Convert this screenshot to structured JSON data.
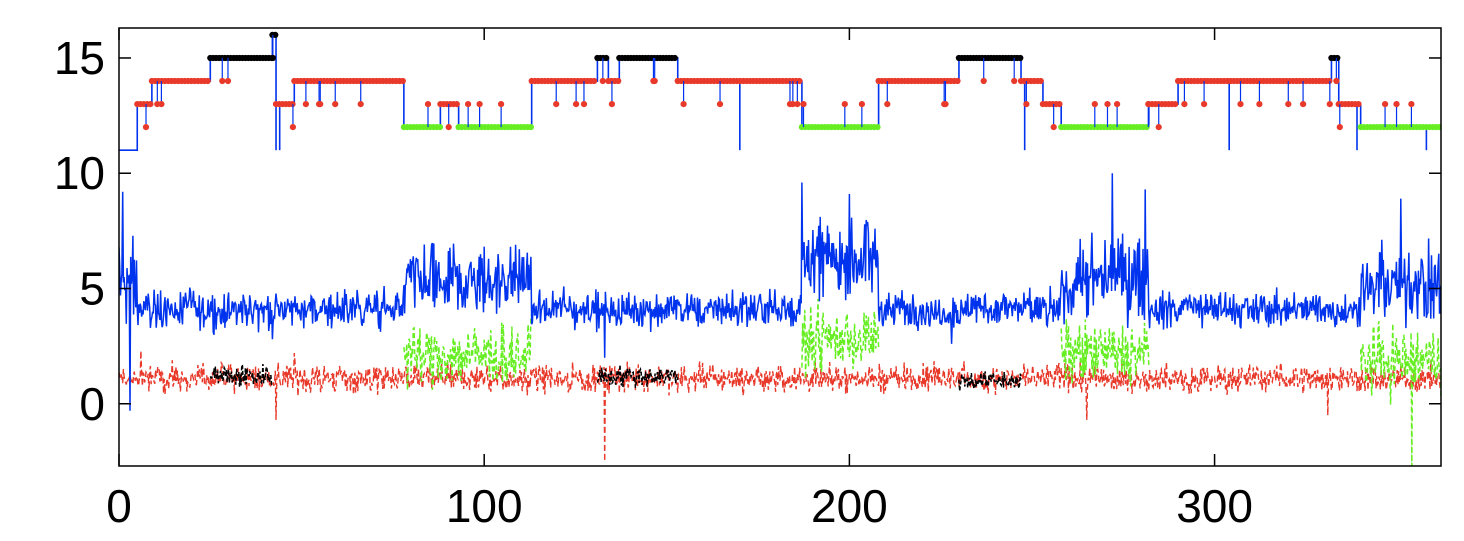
{
  "chart_data": {
    "type": "line",
    "title": "",
    "xlabel": "",
    "ylabel": "",
    "xlim": [
      0,
      362
    ],
    "ylim": [
      -2.7,
      16.3
    ],
    "x_ticks": [
      0,
      100,
      200,
      300
    ],
    "y_ticks": [
      0,
      5,
      10,
      15
    ],
    "x_tick_labels": [
      "0",
      "100",
      "200",
      "300"
    ],
    "y_tick_labels": [
      "0",
      "5",
      "10",
      "15"
    ],
    "grid": false,
    "legend": "none",
    "colors": {
      "blue": "#0033ee",
      "red": "#e8392a",
      "green": "#66ee22",
      "black": "#000000",
      "axis": "#000000",
      "background": "#ffffff"
    },
    "state_segments": [
      {
        "x0": 0,
        "x1": 5,
        "y": 11,
        "color": "blue"
      },
      {
        "x0": 5,
        "x1": 9,
        "y": 13,
        "color": "red"
      },
      {
        "x0": 9,
        "x1": 25,
        "y": 14,
        "color": "red"
      },
      {
        "x0": 25,
        "x1": 42,
        "y": 15,
        "color": "black"
      },
      {
        "x0": 42,
        "x1": 43,
        "y": 16,
        "color": "black"
      },
      {
        "x0": 43,
        "x1": 48,
        "y": 13,
        "color": "red"
      },
      {
        "x0": 48,
        "x1": 78,
        "y": 14,
        "color": "red"
      },
      {
        "x0": 78,
        "x1": 88,
        "y": 12,
        "color": "green"
      },
      {
        "x0": 88,
        "x1": 93,
        "y": 13,
        "color": "red"
      },
      {
        "x0": 93,
        "x1": 113,
        "y": 12,
        "color": "green"
      },
      {
        "x0": 113,
        "x1": 131,
        "y": 14,
        "color": "red"
      },
      {
        "x0": 131,
        "x1": 134,
        "y": 15,
        "color": "black"
      },
      {
        "x0": 134,
        "x1": 137,
        "y": 14,
        "color": "red"
      },
      {
        "x0": 137,
        "x1": 153,
        "y": 15,
        "color": "black"
      },
      {
        "x0": 153,
        "x1": 187,
        "y": 14,
        "color": "red"
      },
      {
        "x0": 187,
        "x1": 208,
        "y": 12,
        "color": "green"
      },
      {
        "x0": 208,
        "x1": 230,
        "y": 14,
        "color": "red"
      },
      {
        "x0": 230,
        "x1": 247,
        "y": 15,
        "color": "black"
      },
      {
        "x0": 247,
        "x1": 253,
        "y": 14,
        "color": "red"
      },
      {
        "x0": 253,
        "x1": 258,
        "y": 13,
        "color": "red"
      },
      {
        "x0": 258,
        "x1": 282,
        "y": 12,
        "color": "green"
      },
      {
        "x0": 282,
        "x1": 290,
        "y": 13,
        "color": "red"
      },
      {
        "x0": 290,
        "x1": 332,
        "y": 14,
        "color": "red"
      },
      {
        "x0": 332,
        "x1": 334,
        "y": 15,
        "color": "black"
      },
      {
        "x0": 334,
        "x1": 340,
        "y": 13,
        "color": "red"
      },
      {
        "x0": 340,
        "x1": 362,
        "y": 12,
        "color": "green"
      }
    ],
    "state_dips": [
      {
        "x": 43,
        "y": 11
      },
      {
        "x": 44,
        "y": 11
      },
      {
        "x": 170,
        "y": 11
      },
      {
        "x": 248,
        "y": 11
      },
      {
        "x": 304,
        "y": 11
      },
      {
        "x": 339,
        "y": 11
      },
      {
        "x": 358,
        "y": 11
      }
    ],
    "series": [
      {
        "color": "blue",
        "baseline": 4.1,
        "spread": 0.9,
        "excursions": [
          {
            "x0": 0,
            "x1": 5,
            "level": 5.2,
            "spread": 2.0
          },
          {
            "x0": 78,
            "x1": 113,
            "level": 5.3,
            "spread": 1.6
          },
          {
            "x0": 187,
            "x1": 208,
            "level": 6.2,
            "spread": 1.7
          },
          {
            "x0": 258,
            "x1": 282,
            "level": 5.4,
            "spread": 1.9
          },
          {
            "x0": 340,
            "x1": 362,
            "level": 5.1,
            "spread": 1.7
          }
        ],
        "spikes": [
          {
            "x": 1,
            "y": 9.2
          },
          {
            "x": 3,
            "y": -0.3
          },
          {
            "x": 42,
            "y": 2.8
          },
          {
            "x": 133,
            "y": 2.0
          },
          {
            "x": 187,
            "y": 9.6
          },
          {
            "x": 200,
            "y": 9.1
          },
          {
            "x": 228,
            "y": 2.6
          },
          {
            "x": 272,
            "y": 10.0
          },
          {
            "x": 281,
            "y": 9.3
          },
          {
            "x": 351,
            "y": 8.9
          }
        ]
      },
      {
        "color": "red",
        "baseline": 1.1,
        "spread": 0.55,
        "spikes": [
          {
            "x": 43,
            "y": -0.7
          },
          {
            "x": 133,
            "y": -2.5
          },
          {
            "x": 265,
            "y": -0.7
          },
          {
            "x": 331,
            "y": -0.5
          },
          {
            "x": 6,
            "y": 2.3
          },
          {
            "x": 48,
            "y": 2.2
          }
        ]
      }
    ],
    "overlay_series": [
      {
        "color": "black",
        "x0": 25,
        "x1": 42,
        "level": 1.2,
        "spread": 0.5
      },
      {
        "color": "black",
        "x0": 131,
        "x1": 153,
        "level": 1.2,
        "spread": 0.45
      },
      {
        "color": "black",
        "x0": 230,
        "x1": 247,
        "level": 1.0,
        "spread": 0.4
      },
      {
        "color": "green",
        "x0": 78,
        "x1": 113,
        "level": 2.1,
        "spread": 1.3
      },
      {
        "color": "green",
        "x0": 187,
        "x1": 208,
        "level": 2.8,
        "spread": 1.3
      },
      {
        "color": "green",
        "x0": 258,
        "x1": 282,
        "level": 2.2,
        "spread": 1.3
      },
      {
        "color": "green",
        "x0": 340,
        "x1": 362,
        "level": 1.9,
        "spread": 1.4,
        "spike": {
          "x": 354,
          "y": -2.7
        }
      }
    ]
  }
}
